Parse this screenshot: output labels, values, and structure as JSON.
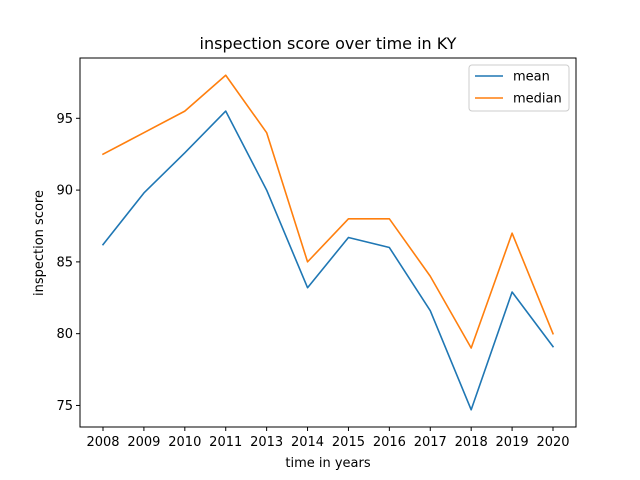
{
  "chart_data": {
    "type": "line",
    "title": "inspection score over time in KY",
    "xlabel": "time in years",
    "ylabel": "inspection score",
    "categories": [
      "2008",
      "2009",
      "2010",
      "2011",
      "2013",
      "2014",
      "2015",
      "2016",
      "2017",
      "2018",
      "2019",
      "2020"
    ],
    "yticks": [
      75,
      80,
      85,
      90,
      95
    ],
    "ylim": [
      73.5,
      99.2
    ],
    "grid": false,
    "legend_position": "top-right",
    "series": [
      {
        "name": "mean",
        "color": "#1f77b4",
        "values": [
          86.2,
          89.8,
          92.6,
          95.5,
          90.0,
          83.2,
          86.7,
          86.0,
          81.6,
          74.7,
          82.9,
          79.1
        ]
      },
      {
        "name": "median",
        "color": "#ff7f0e",
        "values": [
          92.5,
          94.0,
          95.5,
          98.0,
          94.0,
          85.0,
          88.0,
          88.0,
          84.0,
          79.0,
          87.0,
          80.0
        ]
      }
    ]
  }
}
